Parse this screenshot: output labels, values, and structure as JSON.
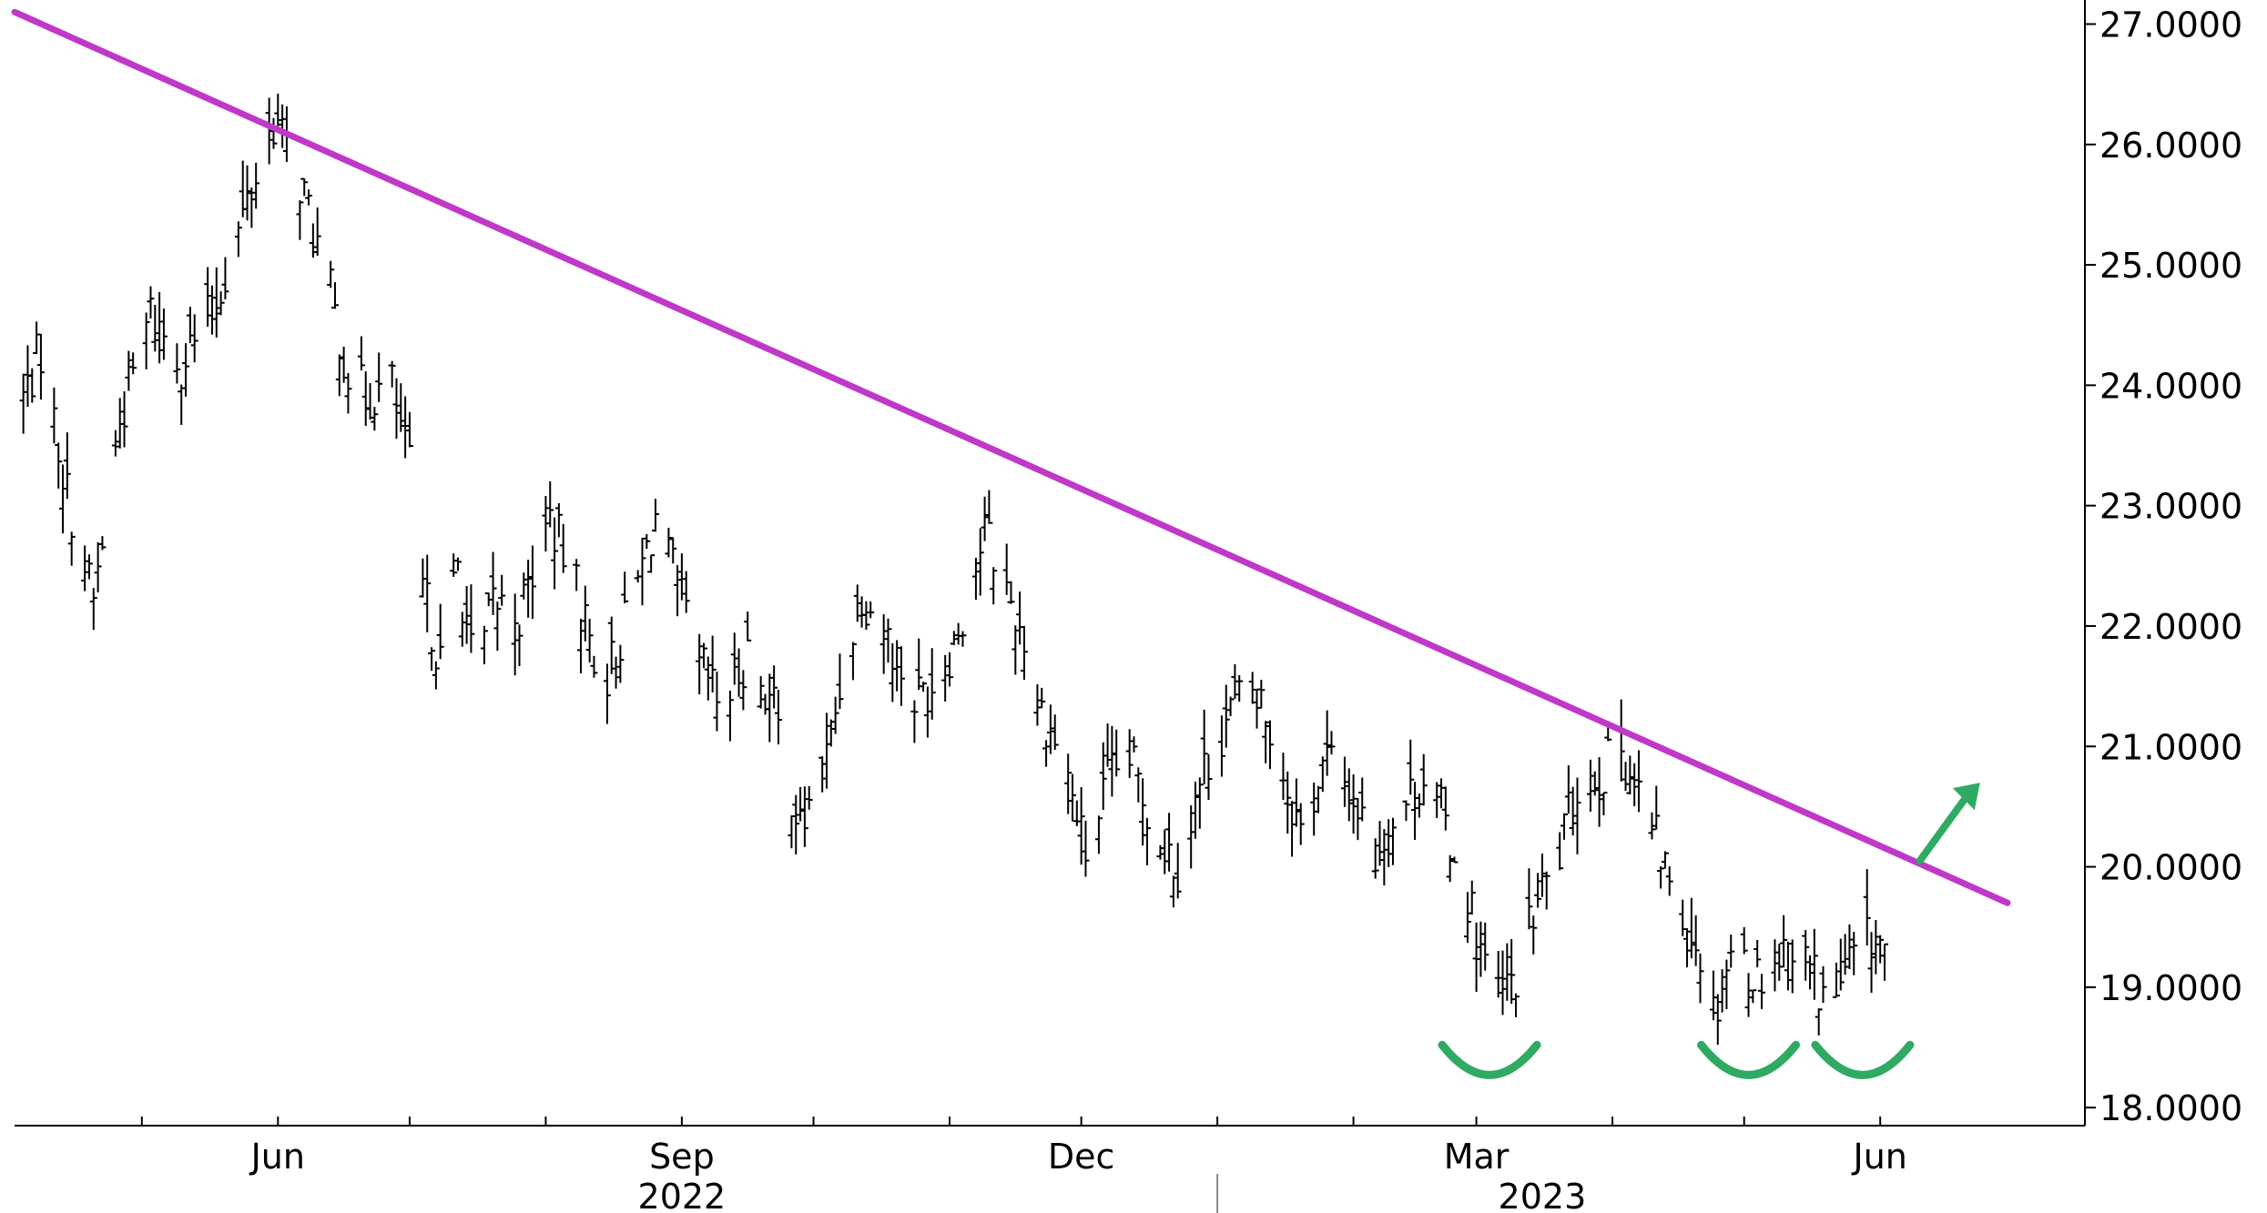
{
  "chart_data": {
    "type": "ohlc",
    "title": "",
    "xlabel": "",
    "ylabel": "",
    "ylim": [
      17.85,
      27.2
    ],
    "y_ticks": [
      "27.0000",
      "26.0000",
      "25.0000",
      "24.0000",
      "23.0000",
      "22.0000",
      "21.0000",
      "20.0000",
      "19.0000",
      "18.0000"
    ],
    "x_tick_labels": [
      {
        "label": "Jun",
        "date": "2022-06-01"
      },
      {
        "label": "Sep",
        "date": "2022-09-01"
      },
      {
        "label": "Dec",
        "date": "2022-12-01"
      },
      {
        "label": "Mar",
        "date": "2023-03-01"
      },
      {
        "label": "Jun",
        "date": "2023-06-01"
      }
    ],
    "year_labels": [
      {
        "label": "2022",
        "date": "2022-09-01"
      },
      {
        "label": "2023",
        "date": "2023-03-16"
      }
    ],
    "x_range": [
      "2022-04-02",
      "2023-06-30"
    ],
    "price_path": [
      [
        "2022-04-02",
        23.7
      ],
      [
        "2022-04-08",
        24.3
      ],
      [
        "2022-04-14",
        23.1
      ],
      [
        "2022-04-20",
        22.2
      ],
      [
        "2022-04-26",
        23.7
      ],
      [
        "2022-05-03",
        24.6
      ],
      [
        "2022-05-10",
        24.2
      ],
      [
        "2022-05-17",
        24.6
      ],
      [
        "2022-05-24",
        25.4
      ],
      [
        "2022-05-31",
        26.2
      ],
      [
        "2022-06-06",
        25.7
      ],
      [
        "2022-06-12",
        24.9
      ],
      [
        "2022-06-17",
        24.1
      ],
      [
        "2022-06-21",
        23.9
      ],
      [
        "2022-06-27",
        24.0
      ],
      [
        "2022-07-01",
        23.3
      ],
      [
        "2022-07-04",
        22.3
      ],
      [
        "2022-07-08",
        21.7
      ],
      [
        "2022-07-12",
        22.5
      ],
      [
        "2022-07-16",
        21.5
      ],
      [
        "2022-07-20",
        22.2
      ],
      [
        "2022-07-26",
        22.1
      ],
      [
        "2022-08-02",
        22.9
      ],
      [
        "2022-08-08",
        22.3
      ],
      [
        "2022-08-14",
        21.5
      ],
      [
        "2022-08-20",
        22.1
      ],
      [
        "2022-08-26",
        22.9
      ],
      [
        "2022-08-31",
        22.3
      ],
      [
        "2022-09-05",
        21.7
      ],
      [
        "2022-09-10",
        21.3
      ],
      [
        "2022-09-16",
        21.8
      ],
      [
        "2022-09-22",
        21.3
      ],
      [
        "2022-09-28",
        20.3
      ],
      [
        "2022-10-04",
        20.9
      ],
      [
        "2022-10-08",
        21.7
      ],
      [
        "2022-10-12",
        22.3
      ],
      [
        "2022-10-18",
        21.9
      ],
      [
        "2022-10-24",
        21.4
      ],
      [
        "2022-10-30",
        21.6
      ],
      [
        "2022-11-05",
        22.2
      ],
      [
        "2022-11-09",
        22.8
      ],
      [
        "2022-11-14",
        22.3
      ],
      [
        "2022-11-18",
        21.9
      ],
      [
        "2022-11-22",
        21.3
      ],
      [
        "2022-11-27",
        20.9
      ],
      [
        "2022-12-02",
        20.1
      ],
      [
        "2022-12-07",
        20.7
      ],
      [
        "2022-12-12",
        20.9
      ],
      [
        "2022-12-17",
        20.4
      ],
      [
        "2022-12-23",
        20.0
      ],
      [
        "2022-12-29",
        20.8
      ],
      [
        "2023-01-04",
        21.3
      ],
      [
        "2023-01-10",
        21.5
      ],
      [
        "2023-01-15",
        20.9
      ],
      [
        "2023-01-20",
        20.3
      ],
      [
        "2023-01-26",
        20.9
      ],
      [
        "2023-02-01",
        20.6
      ],
      [
        "2023-02-06",
        20.1
      ],
      [
        "2023-02-12",
        20.5
      ],
      [
        "2023-02-18",
        20.8
      ],
      [
        "2023-02-24",
        20.1
      ],
      [
        "2023-03-01",
        19.5
      ],
      [
        "2023-03-05",
        18.8
      ],
      [
        "2023-03-10",
        19.1
      ],
      [
        "2023-03-15",
        19.7
      ],
      [
        "2023-03-20",
        20.1
      ],
      [
        "2023-03-24",
        20.7
      ],
      [
        "2023-03-30",
        20.8
      ],
      [
        "2023-04-03",
        21.0
      ],
      [
        "2023-04-07",
        20.6
      ],
      [
        "2023-04-12",
        20.1
      ],
      [
        "2023-04-17",
        19.6
      ],
      [
        "2023-04-21",
        19.3
      ],
      [
        "2023-04-24",
        18.8
      ],
      [
        "2023-04-28",
        19.3
      ],
      [
        "2023-05-04",
        19.1
      ],
      [
        "2023-05-10",
        19.3
      ],
      [
        "2023-05-16",
        19.2
      ],
      [
        "2023-05-20",
        18.8
      ],
      [
        "2023-05-25",
        19.2
      ],
      [
        "2023-05-30",
        19.4
      ],
      [
        "2023-06-02",
        19.3
      ]
    ],
    "annotations": {
      "trendline": {
        "color": "#c038c8",
        "start": [
          "2022-04-02",
          27.1
        ],
        "end": [
          "2023-06-30",
          19.7
        ]
      },
      "bottom_arcs": {
        "color": "#2eaa62",
        "centers": [
          [
            "2023-03-04",
            18.8
          ],
          [
            "2023-05-02",
            18.8
          ],
          [
            "2023-05-28",
            18.8
          ]
        ]
      },
      "up_arrow": {
        "color": "#2eaa62",
        "from": [
          "2023-06-10",
          20.2
        ],
        "to": [
          "2023-06-20",
          20.6
        ]
      }
    },
    "colors": {
      "bars": "#000000",
      "axis": "#000000",
      "background": "#ffffff"
    }
  }
}
